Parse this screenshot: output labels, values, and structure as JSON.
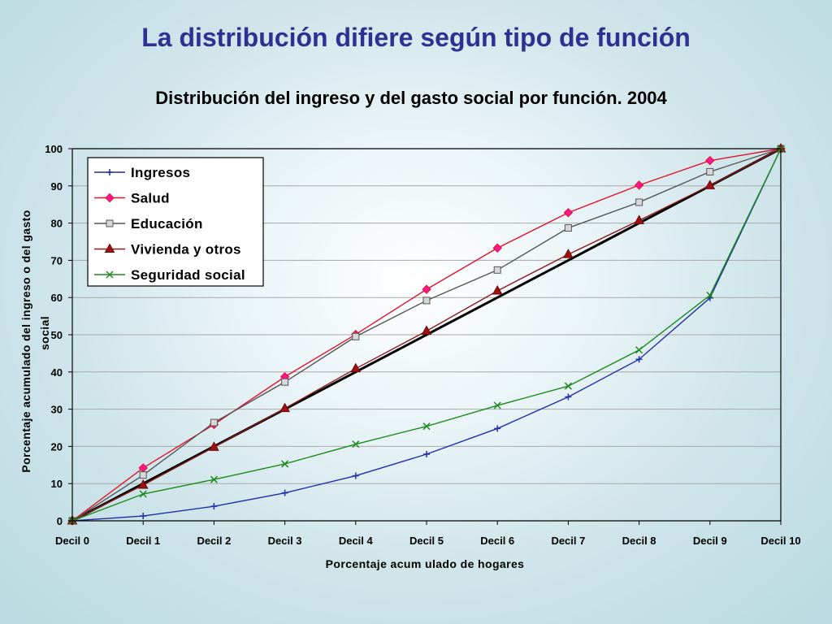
{
  "slide": {
    "title": "La distribución difiere según tipo de función"
  },
  "chart_data": {
    "type": "line",
    "title": "Distribución del ingreso y del gasto social por función. 2004",
    "xlabel": "Porcentaje acum ulado de hogares",
    "ylabel_lines": [
      "Porcentaje acumulado del ingreso o del gasto",
      "social"
    ],
    "categories": [
      "Decil 0",
      "Decil 1",
      "Decil 2",
      "Decil 3",
      "Decil 4",
      "Decil 5",
      "Decil 6",
      "Decil 7",
      "Decil 8",
      "Decil 9",
      "Decil 10"
    ],
    "ylim": [
      0,
      100
    ],
    "yticks": [
      0,
      10,
      20,
      30,
      40,
      50,
      60,
      70,
      80,
      90,
      100
    ],
    "grid": true,
    "legend_position": "top-left",
    "equality_line": {
      "values": [
        0,
        10,
        20,
        30,
        40,
        50,
        60,
        70,
        80,
        90,
        100
      ],
      "color": "#000000"
    },
    "series": [
      {
        "name": "Ingresos",
        "color": "#1f2fa8",
        "marker": "plus",
        "values": [
          0,
          1.3,
          3.9,
          7.5,
          12.1,
          17.9,
          24.8,
          33.3,
          43.4,
          59.9,
          100
        ]
      },
      {
        "name": "Salud",
        "color": "#e0142b",
        "marker": "diamond",
        "values": [
          0,
          14.2,
          25.9,
          38.7,
          50.1,
          62.2,
          73.3,
          82.8,
          90.2,
          96.8,
          100
        ]
      },
      {
        "name": "Educación",
        "color": "#555555",
        "marker": "square",
        "values": [
          0,
          12.3,
          26.4,
          37.3,
          49.5,
          59.2,
          67.4,
          78.7,
          85.6,
          93.8,
          100
        ]
      },
      {
        "name": "Vivienda y otros",
        "color": "#8b1a1a",
        "marker": "triangle",
        "values": [
          0,
          9.6,
          19.8,
          30.2,
          40.9,
          51.0,
          61.8,
          71.6,
          80.7,
          90.1,
          100
        ]
      },
      {
        "name": "Seguridad social",
        "color": "#1e8a1e",
        "marker": "x",
        "values": [
          0,
          7.2,
          11.1,
          15.3,
          20.6,
          25.4,
          31.0,
          36.2,
          45.9,
          60.6,
          100
        ]
      }
    ]
  }
}
